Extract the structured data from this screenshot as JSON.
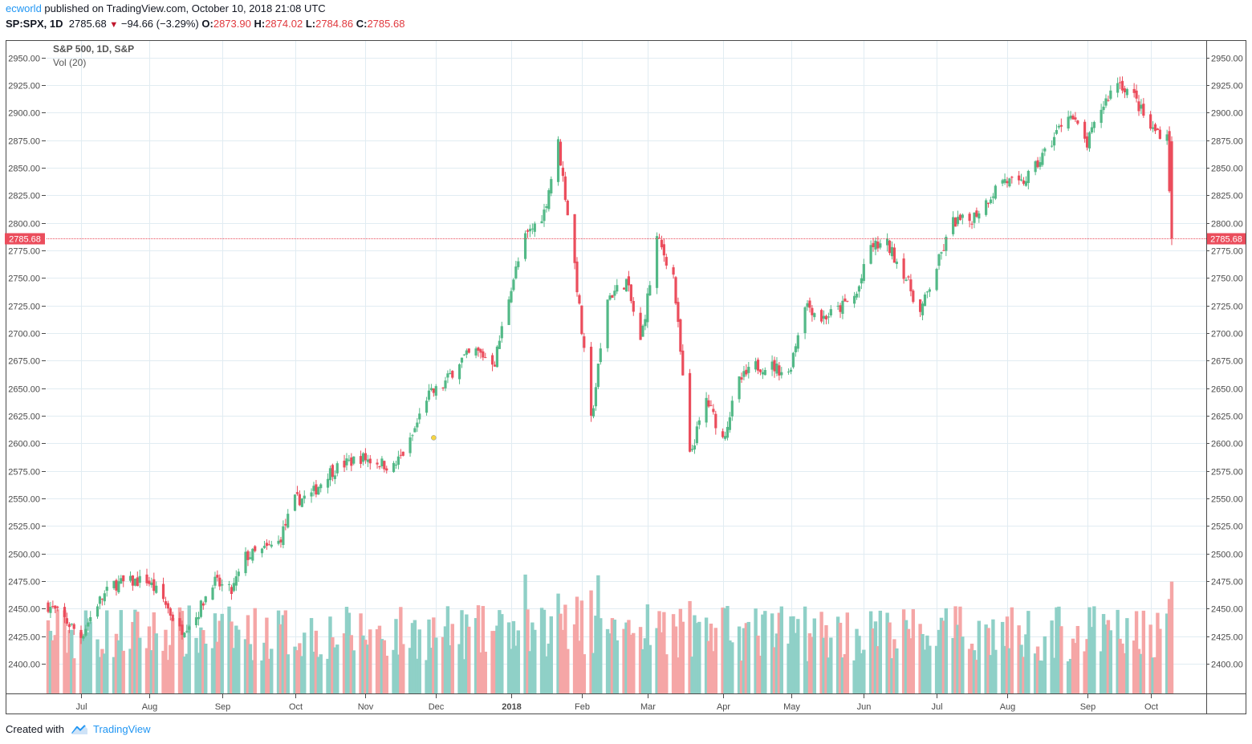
{
  "header": {
    "author": "ecworld",
    "published": "published on TradingView.com, October 10, 2018 21:08 UTC",
    "symbol": "SP:SPX, 1D",
    "last": "2785.68",
    "change": "−94.66 (−3.29%)",
    "open_label": "O:",
    "open": "2873.90",
    "high_label": "H:",
    "high": "2874.02",
    "low_label": "L:",
    "low": "2784.86",
    "close_label": "C:",
    "close": "2785.68"
  },
  "footer": {
    "created_with": "Created with",
    "brand": "TradingView"
  },
  "colors": {
    "up": "#53b987",
    "down": "#eb4d5c",
    "vol_up": "#8fd0c7",
    "vol_down": "#f5a6a6",
    "grid": "#e1ecf2",
    "price_line": "#eb4d5c"
  },
  "chart_data": {
    "type": "candlestick",
    "title": "S&P 500, 1D, S&P",
    "indicator": "Vol (20)",
    "ylim": [
      2373,
      2965
    ],
    "y_ticks": [
      2400,
      2425,
      2450,
      2475,
      2500,
      2525,
      2550,
      2575,
      2600,
      2625,
      2650,
      2675,
      2700,
      2725,
      2750,
      2775,
      2800,
      2825,
      2850,
      2875,
      2900,
      2925,
      2950
    ],
    "x_start": "2017-06-19",
    "x_end": "2018-10-10",
    "x_ticks": [
      {
        "label": "Jul",
        "date": "2017-07-03"
      },
      {
        "label": "Aug",
        "date": "2017-08-01"
      },
      {
        "label": "Sep",
        "date": "2017-09-01"
      },
      {
        "label": "Oct",
        "date": "2017-10-02"
      },
      {
        "label": "Nov",
        "date": "2017-11-01"
      },
      {
        "label": "Dec",
        "date": "2017-12-01"
      },
      {
        "label": "2018",
        "date": "2018-01-02",
        "bold": true
      },
      {
        "label": "Feb",
        "date": "2018-02-01"
      },
      {
        "label": "Mar",
        "date": "2018-03-01"
      },
      {
        "label": "Apr",
        "date": "2018-04-02"
      },
      {
        "label": "May",
        "date": "2018-05-01"
      },
      {
        "label": "Jun",
        "date": "2018-06-01"
      },
      {
        "label": "Jul",
        "date": "2018-07-02"
      },
      {
        "label": "Aug",
        "date": "2018-08-01"
      },
      {
        "label": "Sep",
        "date": "2018-09-04"
      },
      {
        "label": "Oct",
        "date": "2018-10-01"
      }
    ],
    "close_series": [
      {
        "date": "2017-06-19",
        "close": 2453
      },
      {
        "date": "2017-06-26",
        "close": 2440
      },
      {
        "date": "2017-07-03",
        "close": 2425
      },
      {
        "date": "2017-07-10",
        "close": 2455
      },
      {
        "date": "2017-07-17",
        "close": 2472
      },
      {
        "date": "2017-07-24",
        "close": 2474
      },
      {
        "date": "2017-07-31",
        "close": 2476
      },
      {
        "date": "2017-08-07",
        "close": 2458
      },
      {
        "date": "2017-08-14",
        "close": 2430
      },
      {
        "date": "2017-08-21",
        "close": 2443
      },
      {
        "date": "2017-08-28",
        "close": 2475
      },
      {
        "date": "2017-09-05",
        "close": 2465
      },
      {
        "date": "2017-09-11",
        "close": 2497
      },
      {
        "date": "2017-09-18",
        "close": 2502
      },
      {
        "date": "2017-09-25",
        "close": 2510
      },
      {
        "date": "2017-10-02",
        "close": 2548
      },
      {
        "date": "2017-10-09",
        "close": 2553
      },
      {
        "date": "2017-10-16",
        "close": 2573
      },
      {
        "date": "2017-10-23",
        "close": 2581
      },
      {
        "date": "2017-10-30",
        "close": 2587
      },
      {
        "date": "2017-11-06",
        "close": 2583
      },
      {
        "date": "2017-11-13",
        "close": 2578
      },
      {
        "date": "2017-11-20",
        "close": 2601
      },
      {
        "date": "2017-11-27",
        "close": 2642
      },
      {
        "date": "2017-12-04",
        "close": 2652
      },
      {
        "date": "2017-12-11",
        "close": 2675
      },
      {
        "date": "2017-12-18",
        "close": 2683
      },
      {
        "date": "2017-12-26",
        "close": 2674
      },
      {
        "date": "2018-01-02",
        "close": 2743
      },
      {
        "date": "2018-01-08",
        "close": 2786
      },
      {
        "date": "2018-01-16",
        "close": 2810
      },
      {
        "date": "2018-01-22",
        "close": 2872
      },
      {
        "date": "2018-01-29",
        "close": 2762
      },
      {
        "date": "2018-02-05",
        "close": 2620
      },
      {
        "date": "2018-02-12",
        "close": 2732
      },
      {
        "date": "2018-02-20",
        "close": 2747
      },
      {
        "date": "2018-02-26",
        "close": 2691
      },
      {
        "date": "2018-03-05",
        "close": 2786
      },
      {
        "date": "2018-03-12",
        "close": 2752
      },
      {
        "date": "2018-03-19",
        "close": 2588
      },
      {
        "date": "2018-03-26",
        "close": 2640
      },
      {
        "date": "2018-04-02",
        "close": 2604
      },
      {
        "date": "2018-04-09",
        "close": 2656
      },
      {
        "date": "2018-04-16",
        "close": 2670
      },
      {
        "date": "2018-04-23",
        "close": 2670
      },
      {
        "date": "2018-04-30",
        "close": 2663
      },
      {
        "date": "2018-05-07",
        "close": 2728
      },
      {
        "date": "2018-05-14",
        "close": 2713
      },
      {
        "date": "2018-05-21",
        "close": 2721
      },
      {
        "date": "2018-05-29",
        "close": 2735
      },
      {
        "date": "2018-06-04",
        "close": 2779
      },
      {
        "date": "2018-06-11",
        "close": 2780
      },
      {
        "date": "2018-06-18",
        "close": 2755
      },
      {
        "date": "2018-06-25",
        "close": 2718
      },
      {
        "date": "2018-07-02",
        "close": 2760
      },
      {
        "date": "2018-07-09",
        "close": 2801
      },
      {
        "date": "2018-07-16",
        "close": 2802
      },
      {
        "date": "2018-07-23",
        "close": 2819
      },
      {
        "date": "2018-07-30",
        "close": 2840
      },
      {
        "date": "2018-08-06",
        "close": 2833
      },
      {
        "date": "2018-08-13",
        "close": 2850
      },
      {
        "date": "2018-08-20",
        "close": 2874
      },
      {
        "date": "2018-08-27",
        "close": 2901
      },
      {
        "date": "2018-09-04",
        "close": 2871
      },
      {
        "date": "2018-09-10",
        "close": 2904
      },
      {
        "date": "2018-09-17",
        "close": 2929
      },
      {
        "date": "2018-09-24",
        "close": 2914
      },
      {
        "date": "2018-10-01",
        "close": 2885
      },
      {
        "date": "2018-10-08",
        "close": 2880
      },
      {
        "date": "2018-10-10",
        "close": 2785.68
      }
    ],
    "last_price_label": "2785.68",
    "marker": {
      "date": "2017-11-30",
      "value": 2605
    }
  }
}
